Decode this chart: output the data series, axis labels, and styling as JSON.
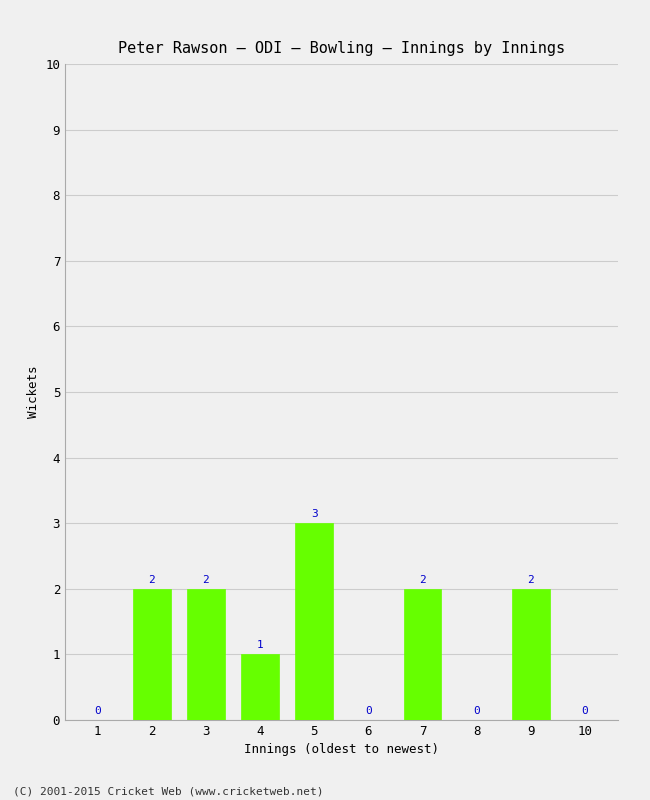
{
  "title": "Peter Rawson – ODI – Bowling – Innings by Innings",
  "xlabel": "Innings (oldest to newest)",
  "ylabel": "Wickets",
  "x_values": [
    1,
    2,
    3,
    4,
    5,
    6,
    7,
    8,
    9,
    10
  ],
  "y_values": [
    0,
    2,
    2,
    1,
    3,
    0,
    2,
    0,
    2,
    0
  ],
  "bar_color": "#66ff00",
  "bar_edge_color": "#66ff00",
  "label_color": "#0000cc",
  "ylim": [
    0,
    10
  ],
  "yticks": [
    0,
    1,
    2,
    3,
    4,
    5,
    6,
    7,
    8,
    9,
    10
  ],
  "xticks": [
    1,
    2,
    3,
    4,
    5,
    6,
    7,
    8,
    9,
    10
  ],
  "background_color": "#f0f0f0",
  "plot_bg_color": "#f0f0f0",
  "grid_color": "#cccccc",
  "footer": "(C) 2001-2015 Cricket Web (www.cricketweb.net)",
  "title_fontsize": 11,
  "axis_label_fontsize": 9,
  "tick_fontsize": 9,
  "bar_label_fontsize": 8,
  "footer_fontsize": 8
}
